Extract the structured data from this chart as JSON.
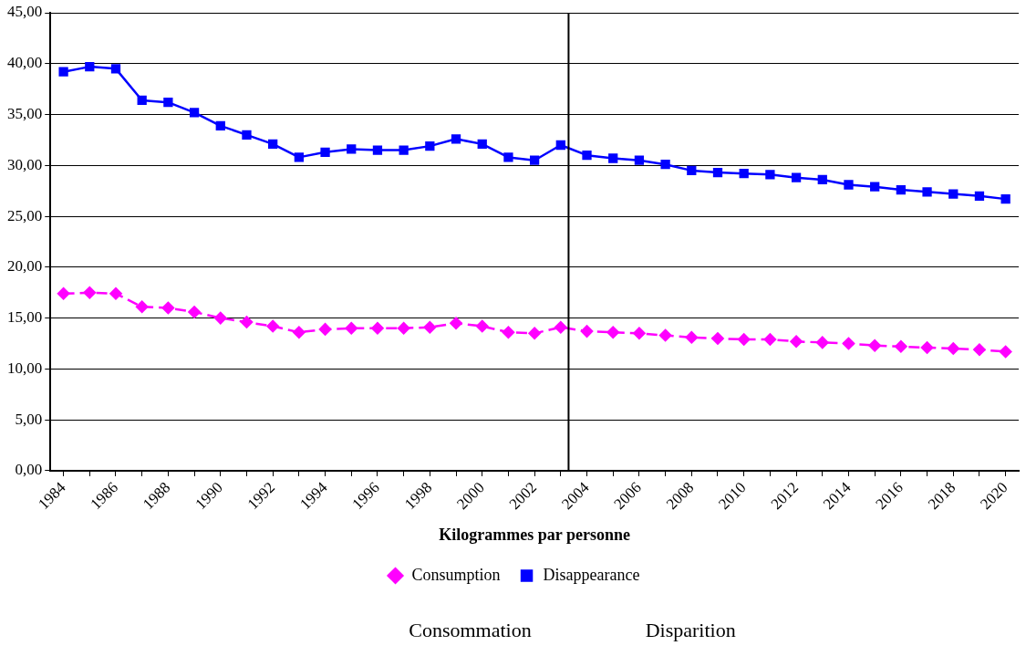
{
  "chart_data": {
    "type": "line",
    "xlabel": "Kilogrammes par personne",
    "x": [
      1984,
      1985,
      1986,
      1987,
      1988,
      1989,
      1990,
      1991,
      1992,
      1993,
      1994,
      1995,
      1996,
      1997,
      1998,
      1999,
      2000,
      2001,
      2002,
      2003,
      2004,
      2005,
      2006,
      2007,
      2008,
      2009,
      2010,
      2011,
      2012,
      2013,
      2014,
      2015,
      2016,
      2017,
      2018,
      2019,
      2020
    ],
    "series": [
      {
        "name": "Consumption",
        "color": "#ff00ff",
        "marker": "diamond",
        "line_style": "dashed",
        "values": [
          17.4,
          17.5,
          17.4,
          16.1,
          16.0,
          15.6,
          15.0,
          14.6,
          14.2,
          13.6,
          13.9,
          14.0,
          14.0,
          14.0,
          14.1,
          14.5,
          14.2,
          13.6,
          13.5,
          14.1,
          13.7,
          13.6,
          13.5,
          13.3,
          13.1,
          13.0,
          12.9,
          12.9,
          12.7,
          12.6,
          12.5,
          12.3,
          12.2,
          12.1,
          12.0,
          11.9,
          11.7
        ]
      },
      {
        "name": "Disappearance",
        "color": "#0000ff",
        "marker": "square",
        "line_style": "solid",
        "values": [
          39.2,
          39.7,
          39.5,
          36.4,
          36.2,
          35.2,
          33.9,
          33.0,
          32.1,
          30.8,
          31.3,
          31.6,
          31.5,
          31.5,
          31.9,
          32.6,
          32.1,
          30.8,
          30.5,
          32.0,
          31.0,
          30.7,
          30.5,
          30.1,
          29.5,
          29.3,
          29.2,
          29.1,
          28.8,
          28.6,
          28.1,
          27.9,
          27.6,
          27.4,
          27.2,
          27.0,
          26.7
        ]
      }
    ],
    "xlim": [
      1983.5,
      2020.5
    ],
    "xticks": [
      1984,
      {
        "value": 1985,
        "label": null
      },
      1986,
      {
        "value": 1987,
        "label": null
      },
      1988,
      {
        "value": 1989,
        "label": null
      },
      1990,
      {
        "value": 1991,
        "label": null
      },
      1992,
      {
        "value": 1993,
        "label": null
      },
      1994,
      {
        "value": 1995,
        "label": null
      },
      1996,
      {
        "value": 1997,
        "label": null
      },
      1998,
      {
        "value": 1999,
        "label": null
      },
      2000,
      {
        "value": 2001,
        "label": null
      },
      2002,
      {
        "value": 2003,
        "label": null
      },
      2004,
      {
        "value": 2005,
        "label": null
      },
      2006,
      {
        "value": 2007,
        "label": null
      },
      2008,
      {
        "value": 2009,
        "label": null
      },
      2010,
      {
        "value": 2011,
        "label": null
      },
      2012,
      {
        "value": 2013,
        "label": null
      },
      2014,
      {
        "value": 2015,
        "label": null
      },
      2016,
      {
        "value": 2017,
        "label": null
      },
      2018,
      {
        "value": 2019,
        "label": null
      },
      2020
    ],
    "ylim": [
      0,
      45
    ],
    "yticks": [
      {
        "value": 0,
        "label": "0,00"
      },
      {
        "value": 5,
        "label": "5,00"
      },
      {
        "value": 10,
        "label": "10,00"
      },
      {
        "value": 15,
        "label": "15,00"
      },
      {
        "value": 20,
        "label": "20,00"
      },
      {
        "value": 25,
        "label": "25,00"
      },
      {
        "value": 30,
        "label": "30,00"
      },
      {
        "value": 35,
        "label": "35,00"
      },
      {
        "value": 40,
        "label": "40,00"
      },
      {
        "value": 45,
        "label": "45,00"
      }
    ],
    "ref_lines": [
      {
        "axis": "x",
        "value": 2003.3,
        "color": "#000000"
      }
    ],
    "grid": "y",
    "legend": "bottom",
    "annotations": [
      "Consommation",
      "Disparition"
    ]
  }
}
